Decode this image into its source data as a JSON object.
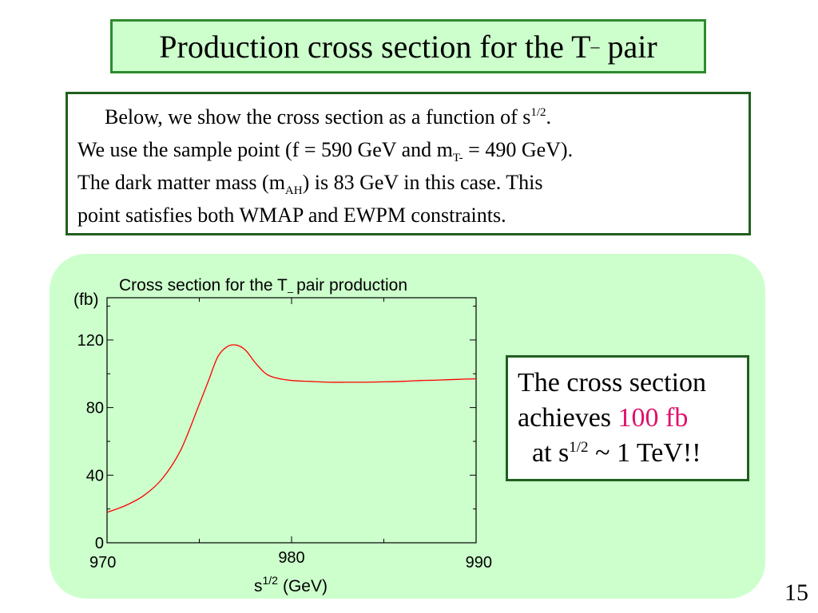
{
  "title": {
    "main": "Production cross section for the T",
    "subscript": "–",
    "tail": "pair"
  },
  "intro": {
    "l1_text": "Below, we show the cross section as a function of s",
    "l1_sup": "1/2",
    "l1_end": ".",
    "l2_text": "We use the sample point (f = 590 GeV and m",
    "l2_sub": "T-",
    "l2_end": " = 490 GeV).",
    "l3_text": "The dark matter mass (m",
    "l3_sub": "AH",
    "l3_end": ") is 83 GeV in this case. This",
    "l4_text": "point satisfies both WMAP and EWPM constraints."
  },
  "callout": {
    "l1": "The cross section",
    "l2_pre": "achieves ",
    "l2_highlight": "100 fb",
    "l3_pre": "at s",
    "l3_sup": "1/2",
    "l3_end": " ~ 1 TeV!!",
    "highlight_color": "#e0106a"
  },
  "page_number": "15",
  "chart_data": {
    "type": "line",
    "title": "Cross section for the T",
    "title_sub": "–",
    "title_end": "pair production",
    "ylabel": "(fb)",
    "xlabel": "s",
    "xlabel_sup": "1/2",
    "xlabel_end": "(GeV)",
    "xlim": [
      970,
      990
    ],
    "ylim": [
      0,
      145
    ],
    "x_ticks": [
      970,
      980,
      990
    ],
    "x_tick_labels": [
      "970",
      "980",
      "990"
    ],
    "y_ticks": [
      0,
      40,
      80,
      120
    ],
    "y_tick_labels": [
      "0",
      "40",
      "80",
      "120"
    ],
    "line_color": "#ff0000",
    "series": [
      {
        "x": [
          970,
          971,
          972,
          973,
          974,
          975,
          975.5,
          976,
          976.5,
          977,
          977.5,
          978,
          978.5,
          979,
          980,
          981,
          982,
          983,
          984,
          985,
          986,
          987,
          988,
          989,
          990
        ],
        "y": [
          18,
          22,
          28,
          38,
          55,
          82,
          96,
          110,
          116,
          117,
          114,
          107,
          101,
          98,
          96,
          95.5,
          95,
          95,
          95,
          95.2,
          95.5,
          96,
          96.3,
          96.7,
          97
        ]
      }
    ]
  }
}
